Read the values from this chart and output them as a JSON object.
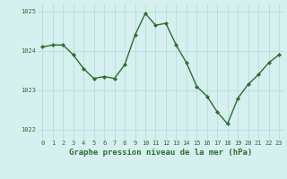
{
  "x": [
    0,
    1,
    2,
    3,
    4,
    5,
    6,
    7,
    8,
    9,
    10,
    11,
    12,
    13,
    14,
    15,
    16,
    17,
    18,
    19,
    20,
    21,
    22,
    23
  ],
  "y": [
    1024.1,
    1024.15,
    1024.15,
    1023.9,
    1023.55,
    1023.3,
    1023.35,
    1023.3,
    1023.65,
    1024.4,
    1024.95,
    1024.65,
    1024.7,
    1024.15,
    1023.7,
    1023.1,
    1022.85,
    1022.45,
    1022.15,
    1022.8,
    1023.15,
    1023.4,
    1023.7,
    1023.9
  ],
  "line_color": "#2d6e2d",
  "marker": "D",
  "marker_size": 2.0,
  "bg_color": "#d6f0ef",
  "grid_color": "#b8dcdc",
  "xlabel": "Graphe pression niveau de la mer (hPa)",
  "xlabel_color": "#2d6e2d",
  "tick_color": "#2d6e2d",
  "ylim": [
    1021.75,
    1025.2
  ],
  "yticks": [
    1022,
    1023,
    1024,
    1025
  ],
  "xticks": [
    0,
    1,
    2,
    3,
    4,
    5,
    6,
    7,
    8,
    9,
    10,
    11,
    12,
    13,
    14,
    15,
    16,
    17,
    18,
    19,
    20,
    21,
    22,
    23
  ],
  "xlim": [
    -0.5,
    23.5
  ],
  "tick_fontsize": 5.0,
  "xlabel_fontsize": 6.5,
  "linewidth": 1.0
}
